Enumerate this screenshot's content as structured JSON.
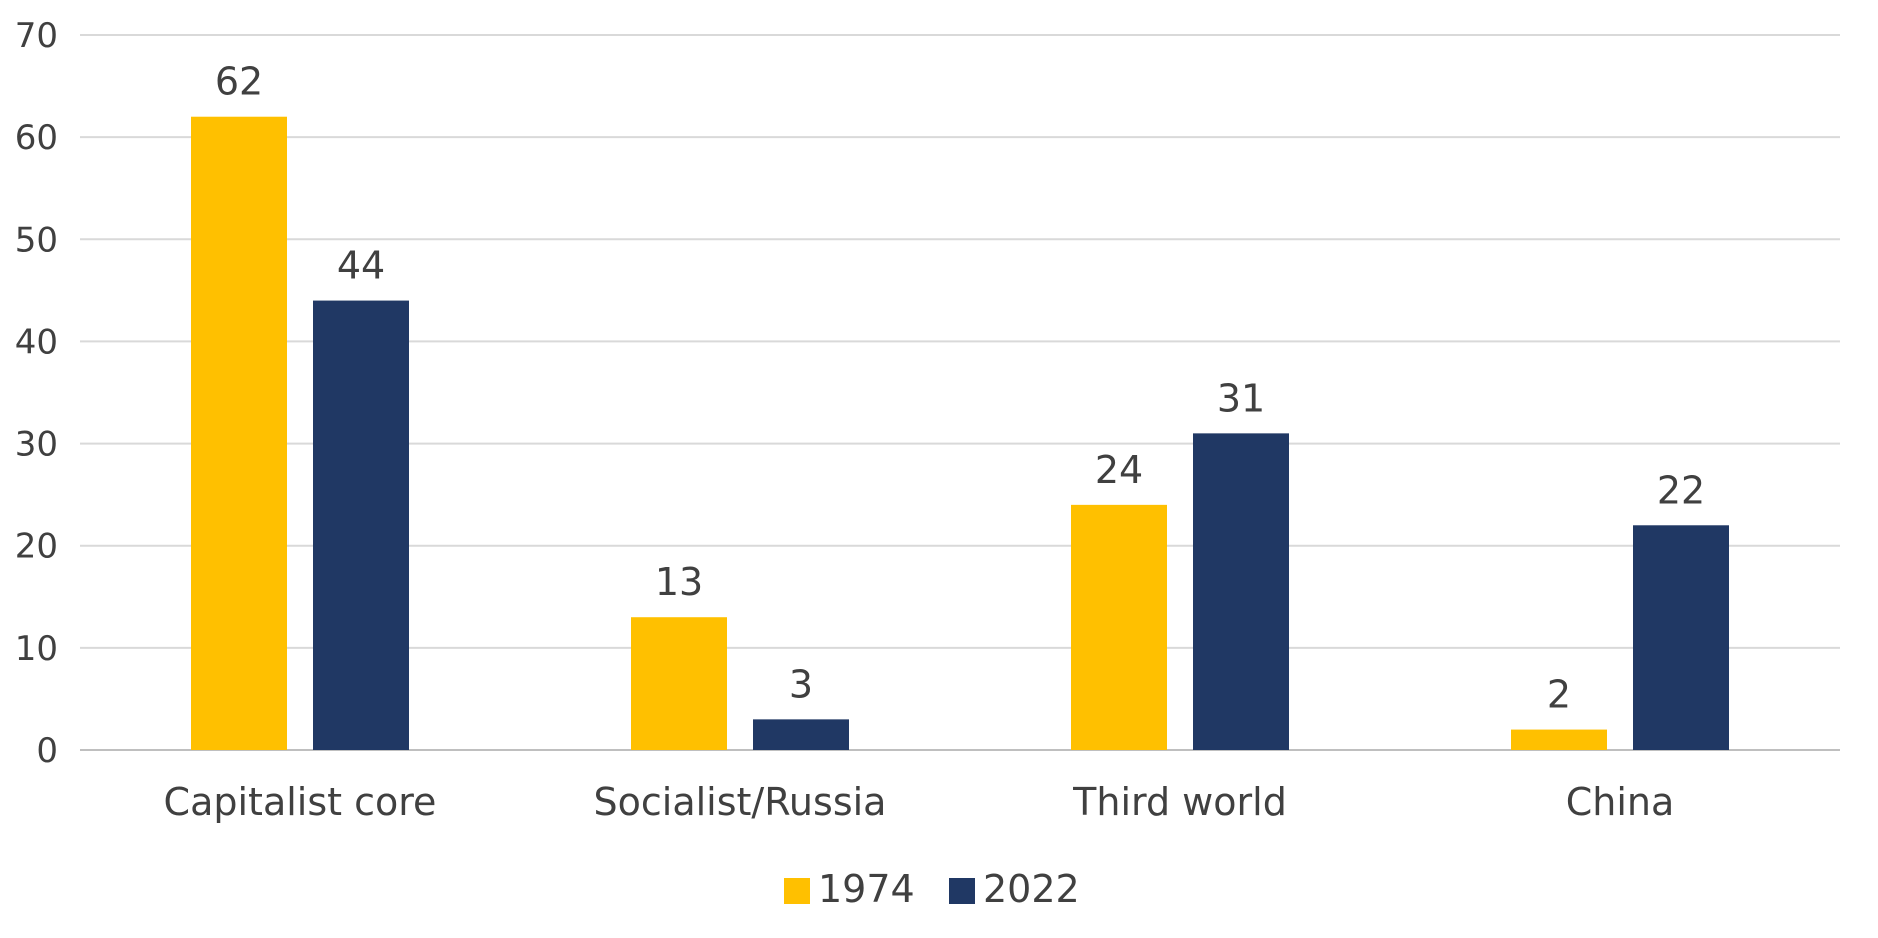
{
  "chart_data": {
    "type": "bar",
    "categories": [
      "Capitalist core",
      "Socialist/Russia",
      "Third world",
      "China"
    ],
    "series": [
      {
        "name": "1974",
        "values": [
          62,
          13,
          24,
          2
        ],
        "color": "#FFC000"
      },
      {
        "name": "2022",
        "values": [
          44,
          3,
          31,
          22
        ],
        "color": "#203864"
      }
    ],
    "data_labels": [
      [
        "62",
        "13",
        "24",
        "2"
      ],
      [
        "44",
        "3",
        "31",
        "22"
      ]
    ],
    "yticks": [
      "0",
      "10",
      "20",
      "30",
      "40",
      "50",
      "60",
      "70"
    ],
    "ylim": [
      0,
      70
    ],
    "grid": true,
    "legend_position": "bottom"
  }
}
